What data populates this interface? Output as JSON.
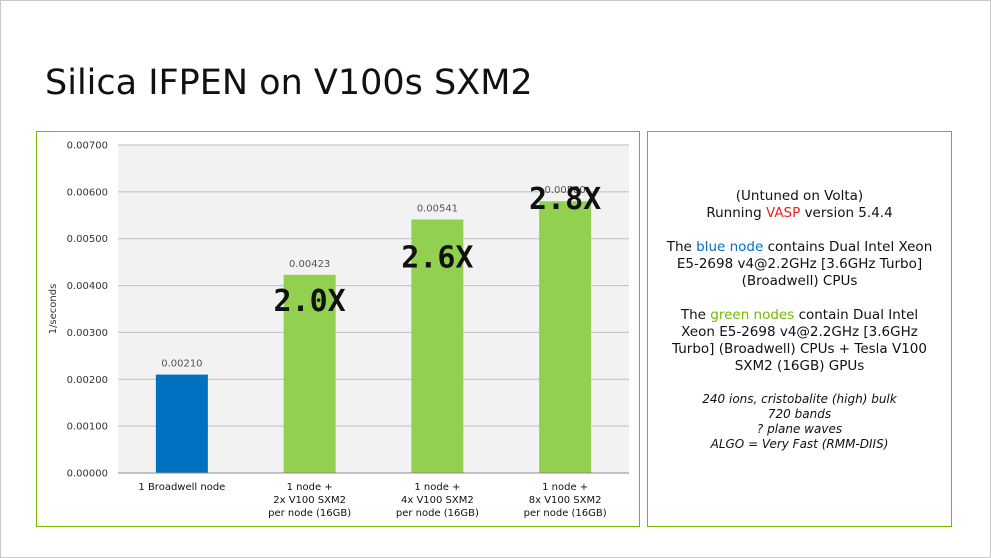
{
  "slide": {
    "title": "Silica IFPEN on V100s SXM2"
  },
  "info": {
    "line1": "(Untuned on Volta)",
    "running_prefix": "Running ",
    "running_highlight": "VASP",
    "running_suffix": " version 5.4.4",
    "blue_prefix": "The ",
    "blue_highlight": "blue node",
    "blue_suffix": " contains Dual Intel Xeon E5-2698 v4@2.2GHz [3.6GHz Turbo] (Broadwell) CPUs",
    "green_prefix": "The ",
    "green_highlight": "green nodes",
    "green_suffix": " contain Dual Intel Xeon E5-2698 v4@2.2GHz [3.6GHz Turbo] (Broadwell) CPUs + Tesla V100 SXM2 (16GB) GPUs",
    "details": [
      "240 ions, cristobalite (high) bulk",
      "720 bands",
      "? plane waves",
      "ALGO = Very Fast (RMM-DIIS)"
    ]
  },
  "chart_data": {
    "type": "bar",
    "ylabel": "1/seconds",
    "ylim": [
      0,
      0.007
    ],
    "yticks": [
      "0.00000",
      "0.00100",
      "0.00200",
      "0.00300",
      "0.00400",
      "0.00500",
      "0.00600",
      "0.00700"
    ],
    "categories": [
      [
        "1 Broadwell node"
      ],
      [
        "1 node +",
        "2x V100 SXM2",
        "per node (16GB)"
      ],
      [
        "1 node +",
        "4x V100 SXM2",
        "per node (16GB)"
      ],
      [
        "1 node +",
        "8x V100 SXM2",
        "per node (16GB)"
      ]
    ],
    "values": [
      0.0021,
      0.00423,
      0.00541,
      0.0058
    ],
    "value_labels": [
      "0.00210",
      "0.00423",
      "0.00541",
      "0.00580"
    ],
    "bar_colors": [
      "#0070c0",
      "#92d050",
      "#92d050",
      "#92d050"
    ],
    "speedups": [
      "",
      "2.0X",
      "2.6X",
      "2.8X"
    ],
    "grid": true,
    "plot_background": "#f2f2f2"
  }
}
